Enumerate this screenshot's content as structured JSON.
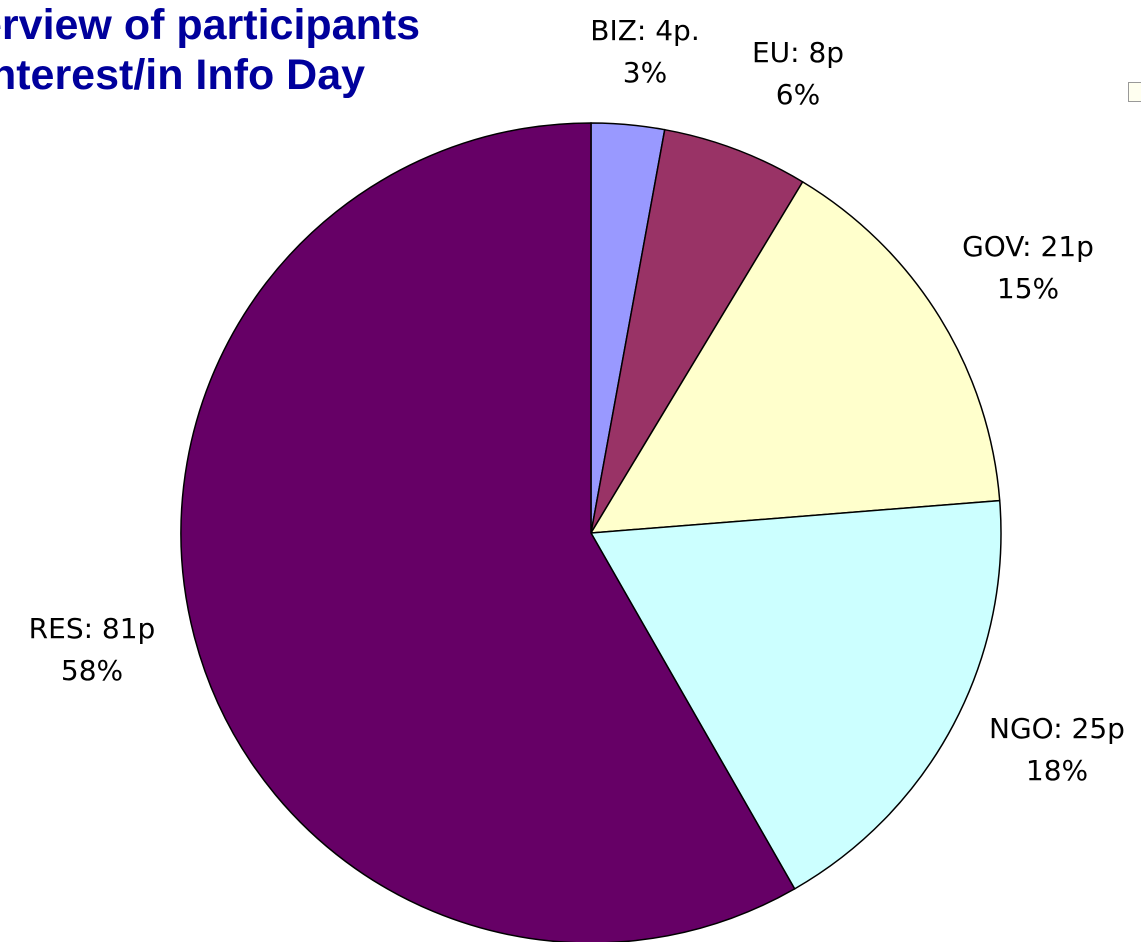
{
  "chart_data": {
    "type": "pie",
    "title_lines": [
      "erview of participants",
      "interest/in Info Day"
    ],
    "slices": [
      {
        "label": "BIZ: 4p.",
        "percent_label": "3%",
        "value": 4,
        "color": "#9999ff"
      },
      {
        "label": "EU: 8p",
        "percent_label": "6%",
        "value": 8,
        "color": "#993366"
      },
      {
        "label": "GOV: 21p",
        "percent_label": "15%",
        "value": 21,
        "color": "#ffffcc"
      },
      {
        "label": "NGO: 25p",
        "percent_label": "18%",
        "value": 25,
        "color": "#ccffff"
      },
      {
        "label": "RES: 81p",
        "percent_label": "58%",
        "value": 81,
        "color": "#660066"
      }
    ],
    "start_angle_deg": 0,
    "direction": "clockwise"
  }
}
